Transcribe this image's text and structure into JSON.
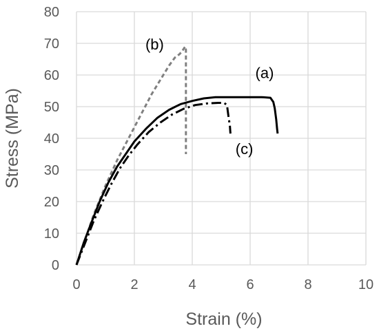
{
  "chart_data": {
    "type": "line",
    "xlabel": "Strain (%)",
    "ylabel": "Stress (MPa)",
    "xlim": [
      0,
      10
    ],
    "ylim": [
      0,
      80
    ],
    "xticks": [
      0,
      2,
      4,
      6,
      8,
      10
    ],
    "yticks": [
      0,
      10,
      20,
      30,
      40,
      50,
      60,
      70,
      80
    ],
    "grid": true,
    "legend": "none",
    "colors": {
      "gridline": "#d9d9d9",
      "axis_text": "#595959",
      "series_b": "#808080",
      "series_a": "#000000",
      "series_c": "#000000"
    },
    "series": [
      {
        "name": "(b)",
        "style": "dashed",
        "x": [
          0,
          0.3,
          0.6,
          1.0,
          1.4,
          1.8,
          2.2,
          2.6,
          3.0,
          3.2,
          3.4,
          3.55,
          3.65,
          3.72,
          3.76,
          3.78,
          3.78,
          3.78
        ],
        "y": [
          0,
          8,
          16,
          25,
          33,
          40,
          47,
          54,
          60,
          63,
          65.5,
          66.5,
          67.5,
          68.5,
          69,
          68,
          52,
          35
        ]
      },
      {
        "name": "(a)",
        "style": "solid",
        "x": [
          0,
          0.25,
          0.5,
          0.8,
          1.1,
          1.4,
          1.7,
          2.0,
          2.4,
          2.8,
          3.2,
          3.6,
          4.0,
          4.4,
          4.8,
          5.2,
          5.6,
          6.0,
          6.4,
          6.7,
          6.8,
          6.85,
          6.9,
          6.93,
          6.95
        ],
        "y": [
          0,
          7,
          13,
          20,
          26,
          31,
          35,
          39,
          43,
          46.5,
          49,
          50.8,
          51.8,
          52.6,
          53,
          53,
          53,
          53,
          53,
          52.8,
          51.5,
          49.5,
          46,
          43,
          41.5
        ]
      },
      {
        "name": "(c)",
        "style": "dashdot",
        "x": [
          0,
          0.3,
          0.6,
          0.9,
          1.2,
          1.5,
          1.8,
          2.1,
          2.5,
          2.9,
          3.3,
          3.7,
          4.1,
          4.5,
          4.9,
          5.1,
          5.2,
          5.25,
          5.3,
          5.32
        ],
        "y": [
          0,
          7,
          14,
          20,
          25.5,
          30.5,
          34.5,
          38,
          42,
          45,
          47.5,
          49.3,
          50.5,
          51,
          51.2,
          51.2,
          50.5,
          47,
          44,
          41.5
        ]
      }
    ],
    "annotations": [
      {
        "text": "(b)",
        "x": 2.7,
        "y": 68
      },
      {
        "text": "(a)",
        "x": 6.5,
        "y": 59
      },
      {
        "text": "(c)",
        "x": 5.8,
        "y": 35
      }
    ]
  }
}
